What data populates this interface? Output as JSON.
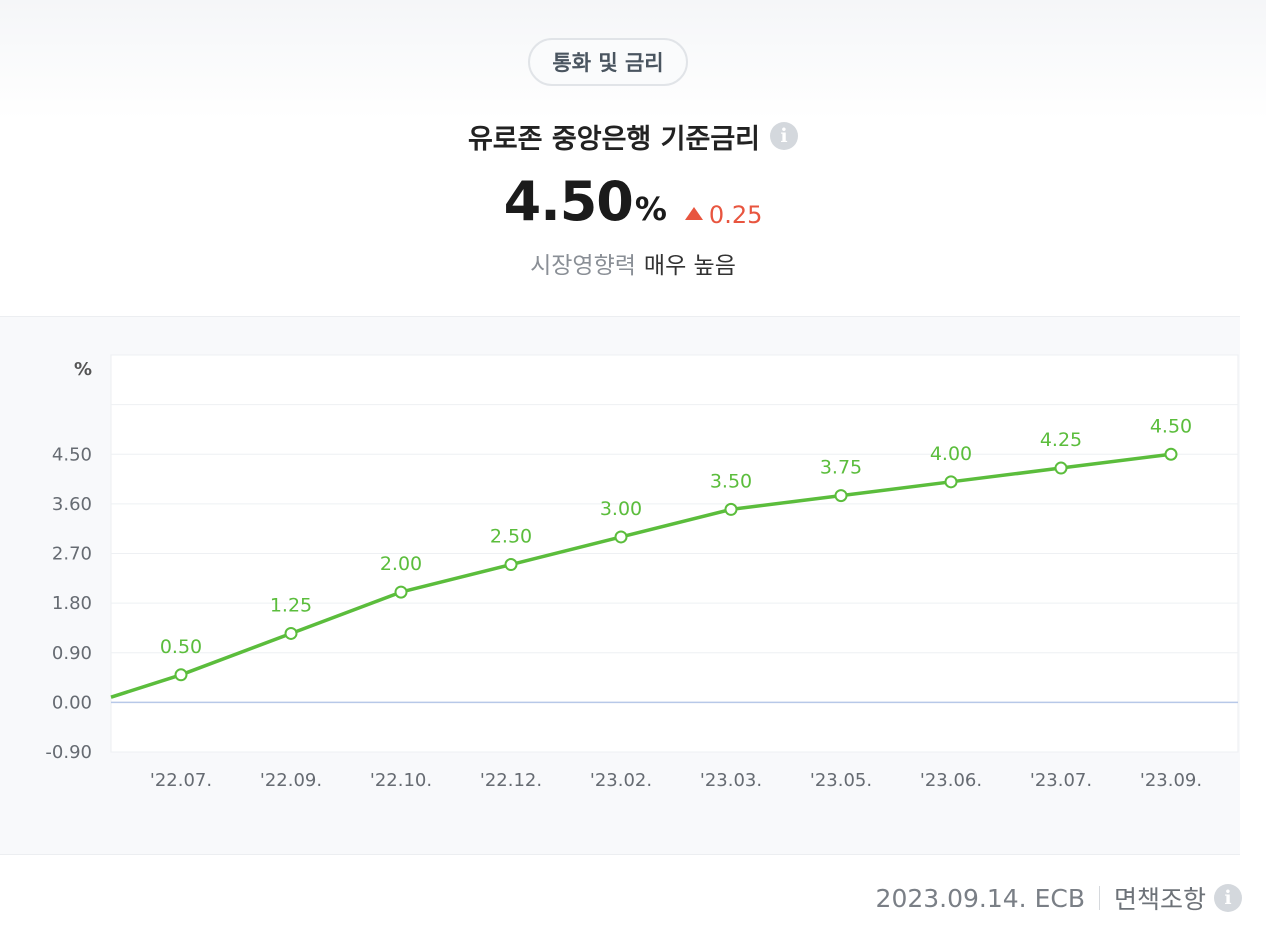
{
  "header": {
    "category": "통화 및 금리",
    "title": "유로존 중앙은행 기준금리",
    "value": "4.50",
    "unit": "%",
    "change": "0.25",
    "impact_label": "시장영향력",
    "impact_value": "매우 높음"
  },
  "footer": {
    "date_source": "2023.09.14. ECB",
    "disclaimer": "면책조항"
  },
  "colors": {
    "line": "#5bbd3c",
    "up": "#e8553f",
    "zero_line": "#b7c8e8"
  },
  "chart_data": {
    "type": "line",
    "unit_label": "%",
    "categories": [
      "'22.07.",
      "'22.09.",
      "'22.10.",
      "'22.12.",
      "'23.02.",
      "'23.03.",
      "'23.05.",
      "'23.06.",
      "'23.07.",
      "'23.09."
    ],
    "series": [
      {
        "values": [
          0.5,
          1.25,
          2.0,
          2.5,
          3.0,
          3.5,
          3.75,
          4.0,
          4.25,
          4.5
        ]
      }
    ],
    "data_labels": [
      "0.50",
      "1.25",
      "2.00",
      "2.50",
      "3.00",
      "3.50",
      "3.75",
      "4.00",
      "4.25",
      "4.50"
    ],
    "y_ticks": [
      "4.50",
      "3.60",
      "2.70",
      "1.80",
      "0.90",
      "0.00",
      "-0.90"
    ],
    "y_tick_values": [
      4.5,
      3.6,
      2.7,
      1.8,
      0.9,
      0.0,
      -0.9
    ],
    "ylim": [
      -0.9,
      6.3
    ],
    "grid": true,
    "previous_value": 0.0
  }
}
